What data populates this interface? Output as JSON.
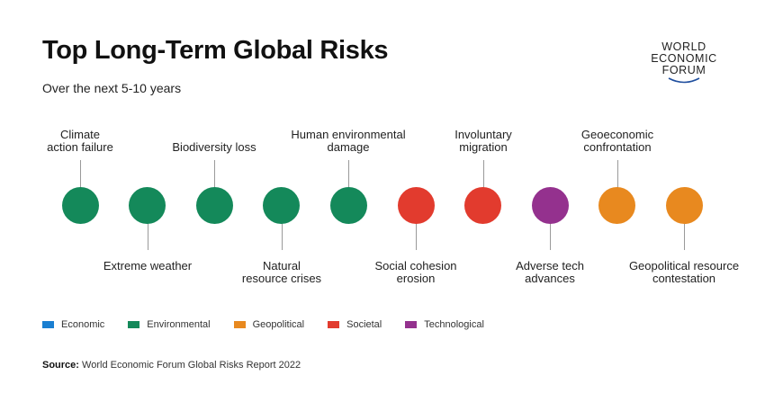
{
  "header": {
    "title": "Top Long-Term Global Risks",
    "subtitle": "Over the next 5-10 years"
  },
  "logo": {
    "line1": "WORLD",
    "line2": "ECONOMIC",
    "line3": "FORUM"
  },
  "colors": {
    "economic": "#1a7fd1",
    "environmental": "#14895a",
    "geopolitical": "#e8891f",
    "societal": "#e23b2e",
    "technological": "#94318e"
  },
  "risks": [
    {
      "line1": "Climate",
      "line2": "action failure",
      "category": "environmental"
    },
    {
      "line1": "Extreme weather",
      "line2": "",
      "category": "environmental"
    },
    {
      "line1": "Biodiversity loss",
      "line2": "",
      "category": "environmental"
    },
    {
      "line1": "Natural",
      "line2": "resource crises",
      "category": "environmental"
    },
    {
      "line1": "Human environmental",
      "line2": "damage",
      "category": "environmental"
    },
    {
      "line1": "Social cohesion",
      "line2": "erosion",
      "category": "societal"
    },
    {
      "line1": "Involuntary",
      "line2": "migration",
      "category": "societal"
    },
    {
      "line1": "Adverse tech",
      "line2": "advances",
      "category": "technological"
    },
    {
      "line1": "Geoeconomic",
      "line2": "confrontation",
      "category": "geopolitical"
    },
    {
      "line1": "Geopolitical resource",
      "line2": "contestation",
      "category": "geopolitical"
    }
  ],
  "legend": [
    {
      "label": "Economic",
      "category": "economic"
    },
    {
      "label": "Environmental",
      "category": "environmental"
    },
    {
      "label": "Geopolitical",
      "category": "geopolitical"
    },
    {
      "label": "Societal",
      "category": "societal"
    },
    {
      "label": "Technological",
      "category": "technological"
    }
  ],
  "source": {
    "label": "Source:",
    "text": "World Economic Forum Global Risks Report 2022"
  }
}
